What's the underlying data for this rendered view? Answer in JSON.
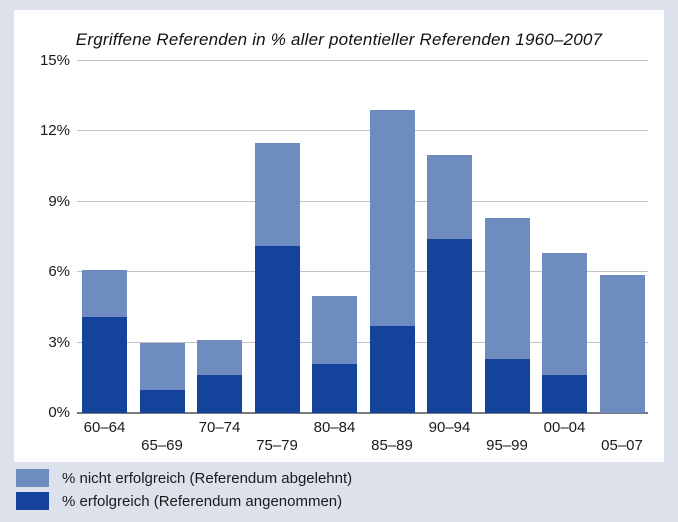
{
  "page": {
    "background_color": "#dce1ec",
    "panel_color": "#ffffff",
    "gridline_color": "#c3c3c3",
    "axis_color": "#7a7a7a"
  },
  "chart_data": {
    "type": "bar",
    "stacked": true,
    "title": "Ergriffene Referenden in % aller potentieller Referenden 1960–2007",
    "categories": [
      "60–64",
      "65–69",
      "70–74",
      "75–79",
      "80–84",
      "85–89",
      "90–94",
      "95–99",
      "00–04",
      "05–07"
    ],
    "series": [
      {
        "name": "% erfolgreich (Referendum angenommen)",
        "color": "#15439c",
        "values": [
          4.1,
          1.0,
          1.6,
          7.1,
          2.1,
          3.7,
          7.4,
          2.3,
          1.6,
          0.0
        ]
      },
      {
        "name": "% nicht erfolgreich (Referendum abgelehnt)",
        "color": "#6e8cc0",
        "values": [
          2.0,
          2.0,
          1.5,
          4.4,
          2.9,
          9.2,
          3.6,
          6.0,
          5.2,
          5.9
        ]
      }
    ],
    "totals": [
      6.1,
      3.0,
      3.1,
      11.5,
      5.0,
      12.9,
      11.0,
      8.3,
      6.8,
      5.9
    ],
    "xlabel": "",
    "ylabel": "",
    "ylim": [
      0,
      15
    ],
    "ytick_values": [
      0,
      3,
      6,
      9,
      12,
      15
    ],
    "ytick_labels": [
      "0%",
      "3%",
      "6%",
      "9%",
      "12%",
      "15%"
    ],
    "grid": true,
    "legend_position": "bottom-left"
  },
  "legend": {
    "items": [
      {
        "label": "% nicht erfolgreich (Referendum abgelehnt)",
        "color": "#6e8cc0"
      },
      {
        "label": "% erfolgreich (Referendum angenommen)",
        "color": "#15439c"
      }
    ]
  }
}
